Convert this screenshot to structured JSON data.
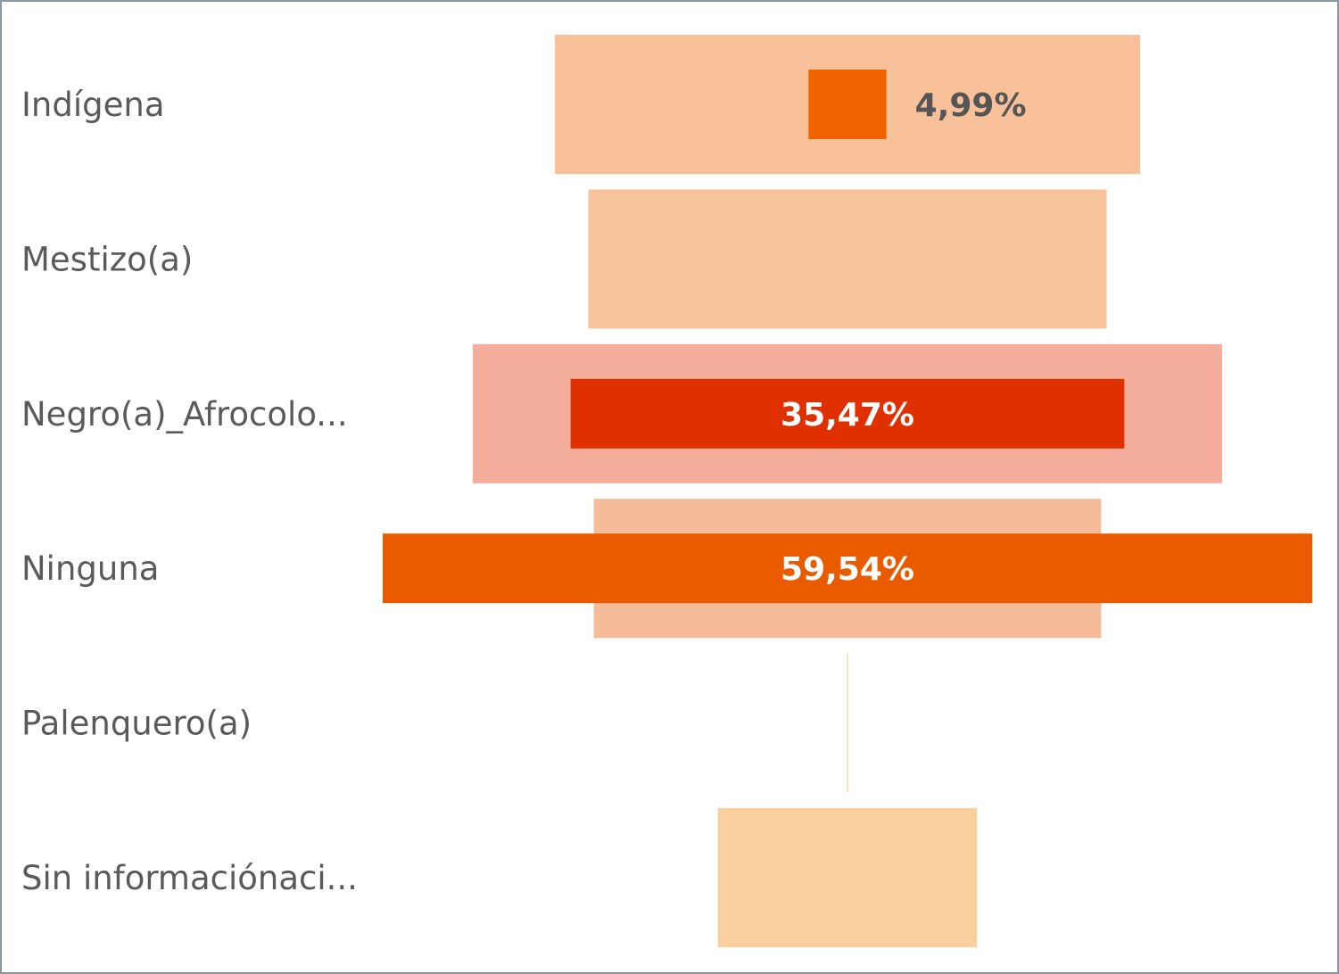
{
  "chart_data": {
    "type": "funnel",
    "categories": [
      "Indígena",
      "Mestizo(a)",
      "Negro(a)_Afrocolo...",
      "Ninguna",
      "Palenquero(a)",
      "Sin informaciónaci..."
    ],
    "series": [
      {
        "values": [
          37.5,
          33.2,
          48.0,
          32.5,
          0.0,
          16.6
        ],
        "colors": [
          "#f8c19a",
          "#f7c39a",
          "#f3ad9a",
          "#f6bc9a",
          "#f5d29e",
          "#fad09e"
        ]
      },
      {
        "values": [
          4.99,
          null,
          35.47,
          59.54,
          null,
          null
        ],
        "colors": [
          "#f06400",
          null,
          "#e03000",
          "#ea5b00",
          null,
          null
        ]
      }
    ],
    "data_labels": [
      "4,99%",
      "",
      "35,47%",
      "59,54%",
      "",
      ""
    ],
    "label_colors": [
      "#555555",
      "",
      "#ffffff",
      "#ffffff",
      "",
      ""
    ],
    "grid": false,
    "legend": "none"
  }
}
